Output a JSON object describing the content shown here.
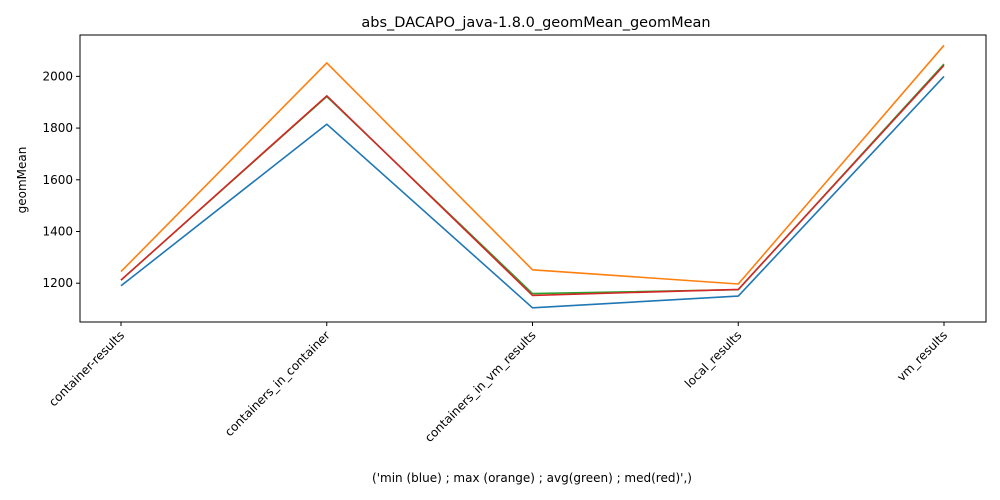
{
  "chart_data": {
    "type": "line",
    "title": "abs_DACAPO_java-1.8.0_geomMean_geomMean",
    "xlabel": "('min (blue) ; max (orange) ; avg(green) ; med(red)',)",
    "ylabel": "geomMean",
    "categories": [
      "container-results",
      "containers_in_container",
      "containers_in_vm_results",
      "local_results",
      "vm_results"
    ],
    "ylim": [
      1050,
      2160
    ],
    "yticks": [
      1200,
      1400,
      1600,
      1800,
      2000
    ],
    "grid": false,
    "series": [
      {
        "color": "#1f77b4",
        "values": [
          1190,
          1815,
          1105,
          1150,
          2000
        ]
      },
      {
        "color": "#ff7f0e",
        "values": [
          1245,
          2052,
          1252,
          1197,
          2120
        ]
      },
      {
        "color": "#2ca02c",
        "values": [
          1212,
          1922,
          1160,
          1175,
          2048
        ]
      },
      {
        "color": "#d62728",
        "values": [
          1212,
          1925,
          1153,
          1176,
          2043
        ]
      }
    ]
  }
}
